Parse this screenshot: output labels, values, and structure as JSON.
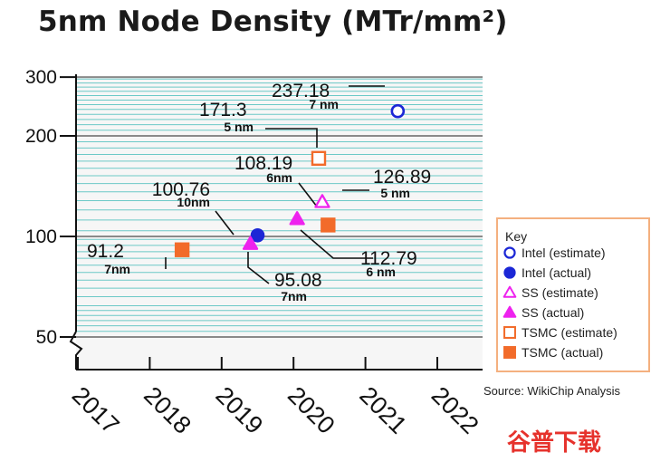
{
  "title": "5nm Node Density (MTr/mm²)",
  "source": "Source: WikiChip Analysis",
  "watermark": "谷普下载",
  "legend": {
    "title": "Key",
    "items": [
      {
        "label": "Intel (estimate)",
        "series": "intel_est"
      },
      {
        "label": "Intel (actual)",
        "series": "intel_act"
      },
      {
        "label": "SS (estimate)",
        "series": "ss_est"
      },
      {
        "label": "SS (actual)",
        "series": "ss_act"
      },
      {
        "label": "TSMC (estimate)",
        "series": "tsmc_est"
      },
      {
        "label": "TSMC (actual)",
        "series": "tsmc_act"
      }
    ]
  },
  "chart_data": {
    "type": "scatter",
    "title": "5nm Node Density (MTr/mm²)",
    "xlabel": "",
    "ylabel": "",
    "y_scale": "log",
    "xlim": [
      2017,
      2022.6
    ],
    "ylim": [
      42,
      300
    ],
    "x_ticks": [
      "2017",
      "2018",
      "2019",
      "2020",
      "2021",
      "2022"
    ],
    "y_ticks": [
      {
        "value": 50,
        "label": "50"
      },
      {
        "value": 100,
        "label": "100"
      },
      {
        "value": 200,
        "label": "200"
      },
      {
        "value": 300,
        "label": "300"
      }
    ],
    "grid": true,
    "legend_position": "right",
    "colors": {
      "intel": "#1b27d6",
      "ss": "#ee22ee",
      "tsmc": "#f26b2a",
      "grid": "#6cc9c7",
      "plot_bg": "#f6f6f6"
    },
    "points": [
      {
        "series": "intel_est",
        "company": "Intel",
        "kind": "estimate",
        "x": 2021.45,
        "y": 237.18,
        "value": "237.18",
        "node": "7 nm"
      },
      {
        "series": "intel_act",
        "company": "Intel",
        "kind": "actual",
        "x": 2019.5,
        "y": 100.76,
        "value": "100.76",
        "node": "10nm"
      },
      {
        "series": "ss_est",
        "company": "SS",
        "kind": "estimate",
        "x": 2020.4,
        "y": 126.89,
        "value": "126.89",
        "node": "5 nm"
      },
      {
        "series": "ss_act",
        "company": "SS",
        "kind": "actual",
        "x": 2020.05,
        "y": 112.79,
        "value": "112.79",
        "node": "6 nm"
      },
      {
        "series": "ss_act",
        "company": "SS",
        "kind": "actual",
        "x": 2019.4,
        "y": 95.08,
        "value": "95.08",
        "node": "7nm"
      },
      {
        "series": "tsmc_est",
        "company": "TSMC",
        "kind": "estimate",
        "x": 2020.35,
        "y": 171.3,
        "value": "171.3",
        "node": "5 nm"
      },
      {
        "series": "tsmc_act",
        "company": "TSMC",
        "kind": "actual",
        "x": 2020.48,
        "y": 108.19,
        "value": "108.19",
        "node": "6nm"
      },
      {
        "series": "tsmc_act",
        "company": "TSMC",
        "kind": "actual",
        "x": 2018.45,
        "y": 91.2,
        "value": "91.2",
        "node": "7nm"
      }
    ]
  }
}
